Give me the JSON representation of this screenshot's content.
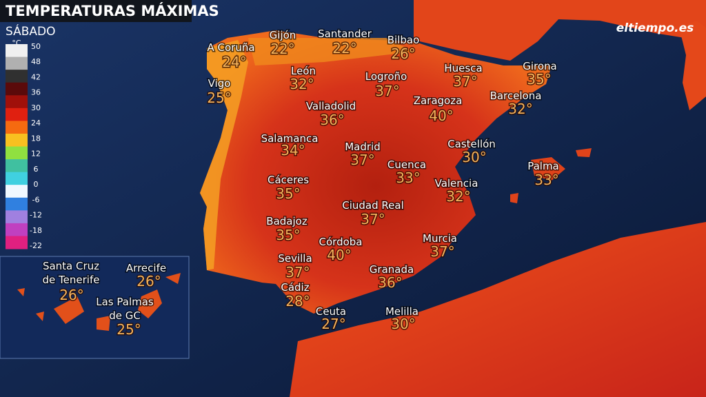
{
  "header": {
    "title": "TEMPERATURAS MÁXIMAS",
    "subtitle": "SÁBADO",
    "logo": "eltiempo.es"
  },
  "legend": {
    "unit": "°C",
    "ticks": [
      "50",
      "48",
      "42",
      "36",
      "30",
      "24",
      "18",
      "12",
      "6",
      "0",
      "-6",
      "-12",
      "-18",
      "-22"
    ]
  },
  "cities": [
    {
      "name": "A Coruña",
      "temp": "24°"
    },
    {
      "name": "Gijón",
      "temp": "22°"
    },
    {
      "name": "Santander",
      "temp": "22°"
    },
    {
      "name": "Bilbao",
      "temp": "26°"
    },
    {
      "name": "Vigo",
      "temp": "25°"
    },
    {
      "name": "León",
      "temp": "32°"
    },
    {
      "name": "Logroño",
      "temp": "37°"
    },
    {
      "name": "Huesca",
      "temp": "37°"
    },
    {
      "name": "Girona",
      "temp": "35°"
    },
    {
      "name": "Barcelona",
      "temp": "32°"
    },
    {
      "name": "Zaragoza",
      "temp": "40°"
    },
    {
      "name": "Valladolid",
      "temp": "36°"
    },
    {
      "name": "Salamanca",
      "temp": "34°"
    },
    {
      "name": "Madrid",
      "temp": "37°"
    },
    {
      "name": "Castellón",
      "temp": "30°"
    },
    {
      "name": "Cuenca",
      "temp": "33°"
    },
    {
      "name": "Palma",
      "temp": "33°"
    },
    {
      "name": "Cáceres",
      "temp": "35°"
    },
    {
      "name": "Valencia",
      "temp": "32°"
    },
    {
      "name": "Ciudad Real",
      "temp": "37°"
    },
    {
      "name": "Badajoz",
      "temp": "35°"
    },
    {
      "name": "Murcia",
      "temp": "37°"
    },
    {
      "name": "Córdoba",
      "temp": "40°"
    },
    {
      "name": "Sevilla",
      "temp": "37°"
    },
    {
      "name": "Granada",
      "temp": "36°"
    },
    {
      "name": "Cádiz",
      "temp": "28°"
    },
    {
      "name": "Ceuta",
      "temp": "27°"
    },
    {
      "name": "Melilla",
      "temp": "30°"
    }
  ],
  "canary": [
    {
      "lines": [
        "Santa Cruz",
        "de Tenerife"
      ],
      "temp": "26°"
    },
    {
      "lines": [
        "Arrecife"
      ],
      "temp": "26°"
    },
    {
      "lines": [
        "Las Palmas",
        "de GC"
      ],
      "temp": "25°"
    }
  ]
}
